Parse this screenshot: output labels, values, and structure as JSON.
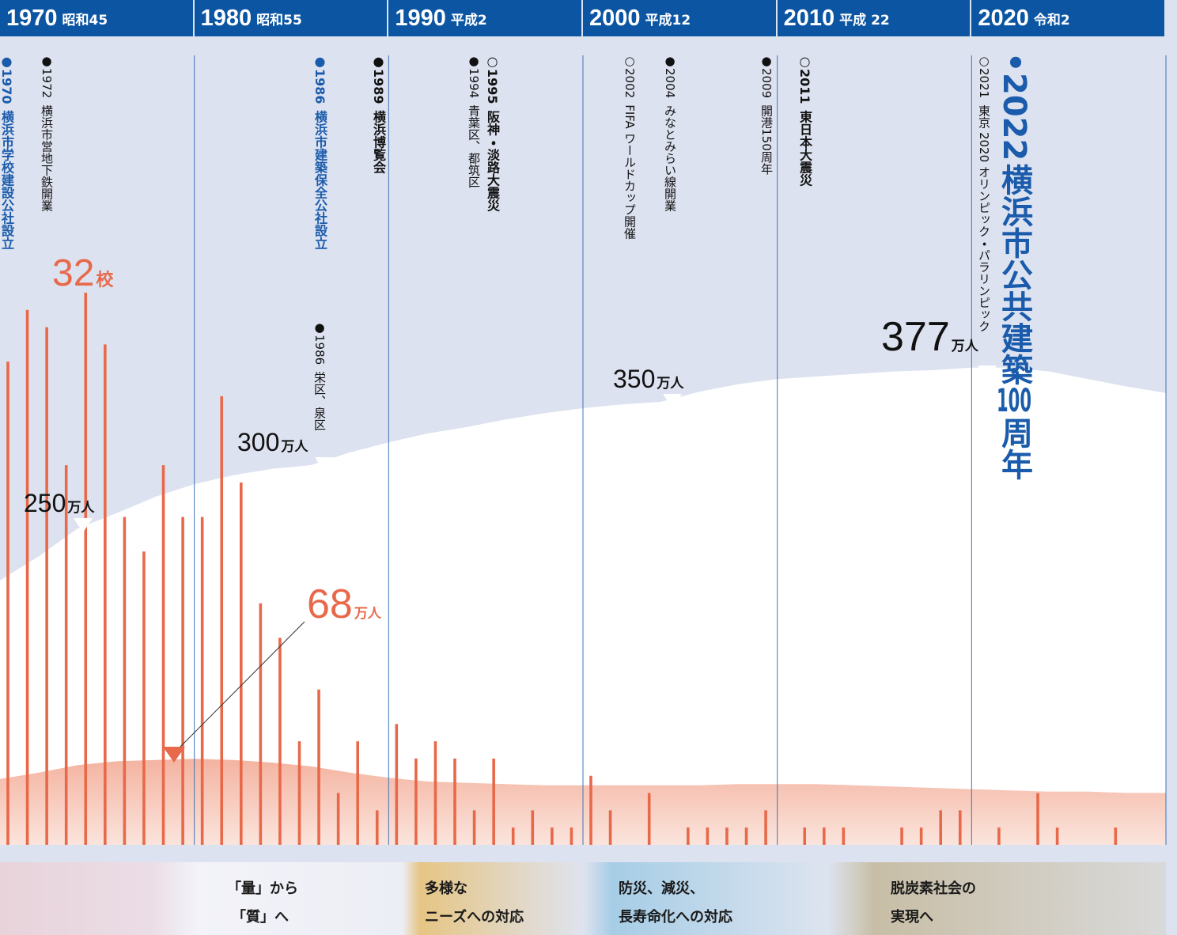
{
  "chart_data": {
    "type": "bar",
    "color": "#e8694a",
    "xlim": [
      1970,
      2030
    ],
    "xticks": [
      {
        "value": 1970,
        "label": "1970"
      },
      {
        "value": 1980,
        "label": "1980"
      },
      {
        "value": 1990,
        "label": "1990"
      },
      {
        "value": 2000,
        "label": "2000"
      },
      {
        "value": 2010,
        "label": "2010"
      },
      {
        "value": 2020,
        "label": "2020"
      }
    ],
    "eras": [
      "昭和45",
      "昭和55",
      "平成2",
      "平成12",
      "平成 22",
      "令和2"
    ],
    "ylim": [
      0,
      32
    ],
    "x": [
      1970,
      1971,
      1972,
      1973,
      1974,
      1975,
      1976,
      1977,
      1978,
      1979,
      1980,
      1981,
      1982,
      1983,
      1984,
      1985,
      1986,
      1987,
      1988,
      1989,
      1990,
      1991,
      1992,
      1993,
      1994,
      1995,
      1996,
      1997,
      1998,
      1999,
      2000,
      2001,
      2002,
      2003,
      2004,
      2005,
      2006,
      2007,
      2008,
      2009,
      2010,
      2011,
      2012,
      2013,
      2014,
      2015,
      2016,
      2017,
      2018,
      2019,
      2020,
      2021,
      2022,
      2023,
      2024,
      2025,
      2026,
      2027
    ],
    "values": [
      28,
      31,
      30,
      22,
      32,
      29,
      19,
      17,
      22,
      19,
      19,
      26,
      21,
      14,
      12,
      6,
      9,
      3,
      6,
      2,
      7,
      5,
      6,
      5,
      2,
      5,
      1,
      2,
      1,
      1,
      4,
      2,
      0,
      3,
      0,
      1,
      1,
      1,
      1,
      2,
      0,
      1,
      1,
      1,
      0,
      0,
      1,
      1,
      2,
      2,
      0,
      1,
      0,
      3,
      1,
      0,
      0,
      1
    ],
    "y2lim": [
      0,
      625
    ],
    "areas": [
      {
        "color": "#ffffff",
        "axis": "y2",
        "x": [
          1970,
          1972,
          1974,
          1976,
          1978,
          1980,
          1982,
          1984,
          1986,
          1988,
          1990,
          1992,
          1994,
          1996,
          1998,
          2000,
          2002,
          2004,
          2006,
          2008,
          2010,
          2012,
          2014,
          2016,
          2018,
          2020,
          2022,
          2024,
          2026,
          2028,
          2030
        ],
        "values": [
          209,
          228,
          250,
          262,
          275,
          285,
          292,
          297,
          300,
          310,
          318,
          325,
          330,
          336,
          341,
          345,
          348,
          350,
          358,
          364,
          368,
          370,
          372,
          374,
          375,
          377,
          377,
          374,
          368,
          362,
          357
        ]
      },
      {
        "color": "#f4b6a2",
        "axis": "y2",
        "x": [
          1970,
          1972,
          1974,
          1976,
          1978,
          1980,
          1982,
          1984,
          1986,
          1988,
          1990,
          1992,
          1994,
          1996,
          1998,
          2000,
          2002,
          2004,
          2006,
          2008,
          2010,
          2012,
          2014,
          2016,
          2018,
          2020,
          2022,
          2024,
          2026,
          2028,
          2030
        ],
        "values": [
          52,
          57,
          63,
          66,
          67,
          68,
          67,
          65,
          62,
          57,
          53,
          50,
          49,
          48,
          47,
          47,
          47,
          47,
          47,
          48,
          48,
          48,
          47,
          46,
          45,
          44,
          43,
          42,
          42,
          41,
          41
        ]
      }
    ],
    "annotations": [
      {
        "number": "32",
        "unit": "校"
      },
      {
        "number": "250",
        "unit": "万人"
      },
      {
        "number": "300",
        "unit": "万人"
      },
      {
        "number": "350",
        "unit": "万人"
      },
      {
        "number": "377",
        "unit": "万人"
      },
      {
        "number": "68",
        "unit": "万人"
      }
    ],
    "events": [
      {
        "mark": "●",
        "year": "1970",
        "text": "横浜市学校建設公社設立",
        "color": "#1a5bab",
        "bold": true
      },
      {
        "mark": "●",
        "year": "1972",
        "text": "横浜市営地下鉄開業",
        "color": "#111111",
        "bold": false
      },
      {
        "mark": "●",
        "year": "1986",
        "text": "横浜市建築保全公社設立",
        "color": "#1a5bab",
        "bold": true
      },
      {
        "mark": "●",
        "year": "1986",
        "text": "栄区、泉区",
        "color": "#111111",
        "bold": false
      },
      {
        "mark": "●",
        "year": "1989",
        "text": "横浜博覧会",
        "color": "#111111",
        "bold": true
      },
      {
        "mark": "○",
        "year": "1995",
        "text": "阪神・淡路大震災",
        "color": "#111111",
        "bold": true
      },
      {
        "mark": "●",
        "year": "1994",
        "text": "青葉区、都筑区",
        "color": "#111111",
        "bold": false
      },
      {
        "mark": "○",
        "year": "2002",
        "text": "FIFA ワールドカップ開催",
        "color": "#111111",
        "bold": false
      },
      {
        "mark": "●",
        "year": "2004",
        "text": "みなとみらい線開業",
        "color": "#111111",
        "bold": false
      },
      {
        "mark": "●",
        "year": "2009",
        "text": "開港150周年",
        "color": "#111111",
        "bold": false
      },
      {
        "mark": "○",
        "year": "2011",
        "text": "東日本大震災",
        "color": "#111111",
        "bold": true
      },
      {
        "mark": "○",
        "year": "2021",
        "text": "東京 2020 オリンピック・パラリンピック",
        "color": "#111111",
        "bold": false
      },
      {
        "mark": "•",
        "year": "2022",
        "text": "横浜市公共建築",
        "number": "100",
        "text2": "周年",
        "color": "#1a5bab",
        "bold": true
      }
    ],
    "phases": [
      {
        "lines": [
          "「量」から",
          "「質」へ"
        ]
      },
      {
        "lines": [
          "多様な",
          "ニーズへの対応"
        ]
      },
      {
        "lines": [
          "防災、減災、",
          "長寿命化への対応"
        ]
      },
      {
        "lines": [
          "脱炭素社会の",
          "実現へ"
        ]
      }
    ]
  }
}
